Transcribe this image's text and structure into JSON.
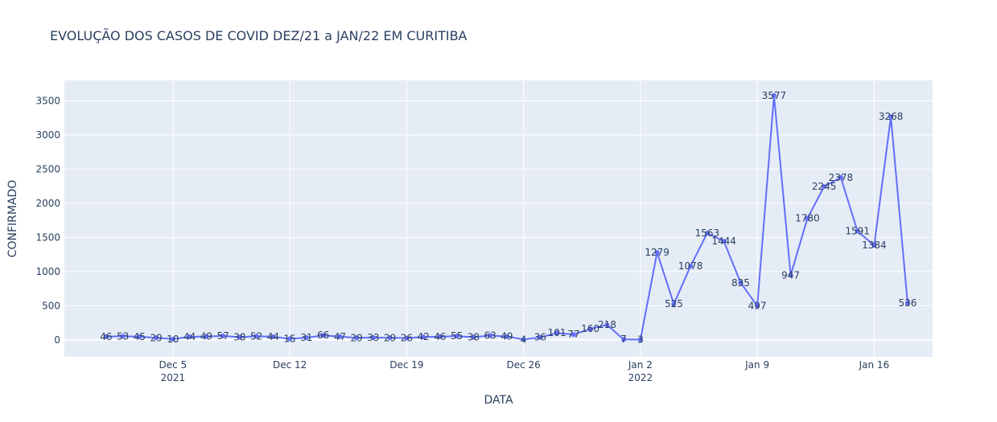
{
  "chart_data": {
    "type": "line",
    "title": "EVOLUÇÃO DOS CASOS DE COVID DEZ/21 a JAN/22 EM CURITIBA",
    "xlabel": "DATA",
    "ylabel": "CONFIRMADO",
    "ylim": [
      -250,
      3800
    ],
    "xlim": [
      "2021-11-28T12:00",
      "2022-01-19T12:00"
    ],
    "grid": true,
    "y_ticks": [
      0,
      500,
      1000,
      1500,
      2000,
      2500,
      3000,
      3500
    ],
    "x_ticks": [
      {
        "date": "2021-12-05",
        "label": "Dec 5",
        "sublabel": "2021"
      },
      {
        "date": "2021-12-12",
        "label": "Dec 12",
        "sublabel": ""
      },
      {
        "date": "2021-12-19",
        "label": "Dec 19",
        "sublabel": ""
      },
      {
        "date": "2021-12-26",
        "label": "Dec 26",
        "sublabel": ""
      },
      {
        "date": "2022-01-02",
        "label": "Jan 2",
        "sublabel": "2022"
      },
      {
        "date": "2022-01-09",
        "label": "Jan 9",
        "sublabel": ""
      },
      {
        "date": "2022-01-16",
        "label": "Jan 16",
        "sublabel": ""
      }
    ],
    "series": [
      {
        "color": "#636efa",
        "x": [
          "2021-12-01",
          "2021-12-02",
          "2021-12-03",
          "2021-12-04",
          "2021-12-05",
          "2021-12-06",
          "2021-12-07",
          "2021-12-08",
          "2021-12-09",
          "2021-12-10",
          "2021-12-11",
          "2021-12-12",
          "2021-12-13",
          "2021-12-14",
          "2021-12-15",
          "2021-12-16",
          "2021-12-17",
          "2021-12-18",
          "2021-12-19",
          "2021-12-20",
          "2021-12-21",
          "2021-12-22",
          "2021-12-23",
          "2021-12-24",
          "2021-12-25",
          "2021-12-26",
          "2021-12-27",
          "2021-12-28",
          "2021-12-29",
          "2021-12-30",
          "2021-12-31",
          "2022-01-01",
          "2022-01-02",
          "2022-01-03",
          "2022-01-04",
          "2022-01-05",
          "2022-01-06",
          "2022-01-07",
          "2022-01-08",
          "2022-01-09",
          "2022-01-10",
          "2022-01-11",
          "2022-01-12",
          "2022-01-13",
          "2022-01-14",
          "2022-01-15",
          "2022-01-16",
          "2022-01-17",
          "2022-01-18"
        ],
        "values": [
          46,
          53,
          45,
          29,
          10,
          44,
          49,
          57,
          38,
          52,
          44,
          15,
          31,
          66,
          47,
          29,
          33,
          29,
          26,
          42,
          46,
          55,
          38,
          63,
          49,
          4,
          36,
          101,
          77,
          160,
          218,
          7,
          3,
          1279,
          525,
          1078,
          1563,
          1444,
          835,
          497,
          3577,
          947,
          1780,
          2245,
          2378,
          1591,
          1384,
          3268,
          536
        ]
      }
    ]
  }
}
